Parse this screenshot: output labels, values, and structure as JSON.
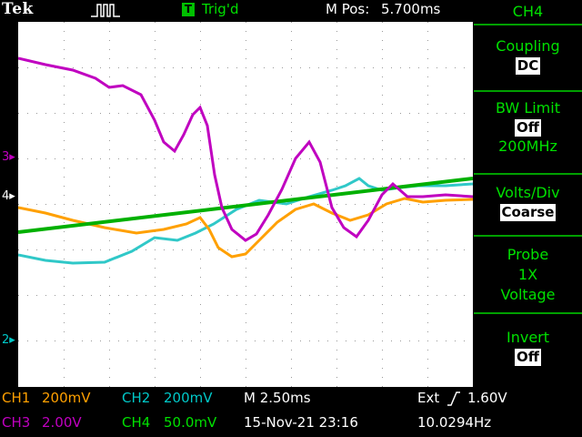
{
  "header": {
    "brand": "Tek",
    "trigger_icon_letter": "T",
    "trigger_state": "Trig'd",
    "mpos_label": "M Pos:",
    "mpos_value": "5.700ms"
  },
  "display": {
    "ref_markers": [
      {
        "label": "3",
        "color": "#c000c0"
      },
      {
        "label": "4",
        "color": "#00c000"
      },
      {
        "label": "2",
        "color": "#00c8c8"
      }
    ]
  },
  "side_menu": {
    "title": "CH4",
    "coupling": {
      "label": "Coupling",
      "value": "DC"
    },
    "bw_limit": {
      "label": "BW Limit",
      "value": "Off",
      "sub": "200MHz"
    },
    "volts_div": {
      "label": "Volts/Div",
      "value": "Coarse"
    },
    "probe": {
      "label": "Probe",
      "value": "1X",
      "sub": "Voltage"
    },
    "invert": {
      "label": "Invert",
      "value": "Off"
    }
  },
  "status": {
    "ch1": {
      "name": "CH1",
      "scale": "200mV",
      "color": "#ffa000"
    },
    "ch2": {
      "name": "CH2",
      "scale": "200mV",
      "color": "#00c8c8"
    },
    "ch3": {
      "name": "CH3",
      "scale": "2.00V",
      "color": "#c000c0"
    },
    "ch4": {
      "name": "CH4",
      "scale": "50.0mV",
      "color": "#00e000"
    },
    "timebase": "M 2.50ms",
    "trigger": "Ext",
    "trigger_slope": "rising-edge-icon",
    "trigger_level": "1.60V",
    "datetime": "15-Nov-21 23:16",
    "frequency": "10.0294Hz"
  }
}
